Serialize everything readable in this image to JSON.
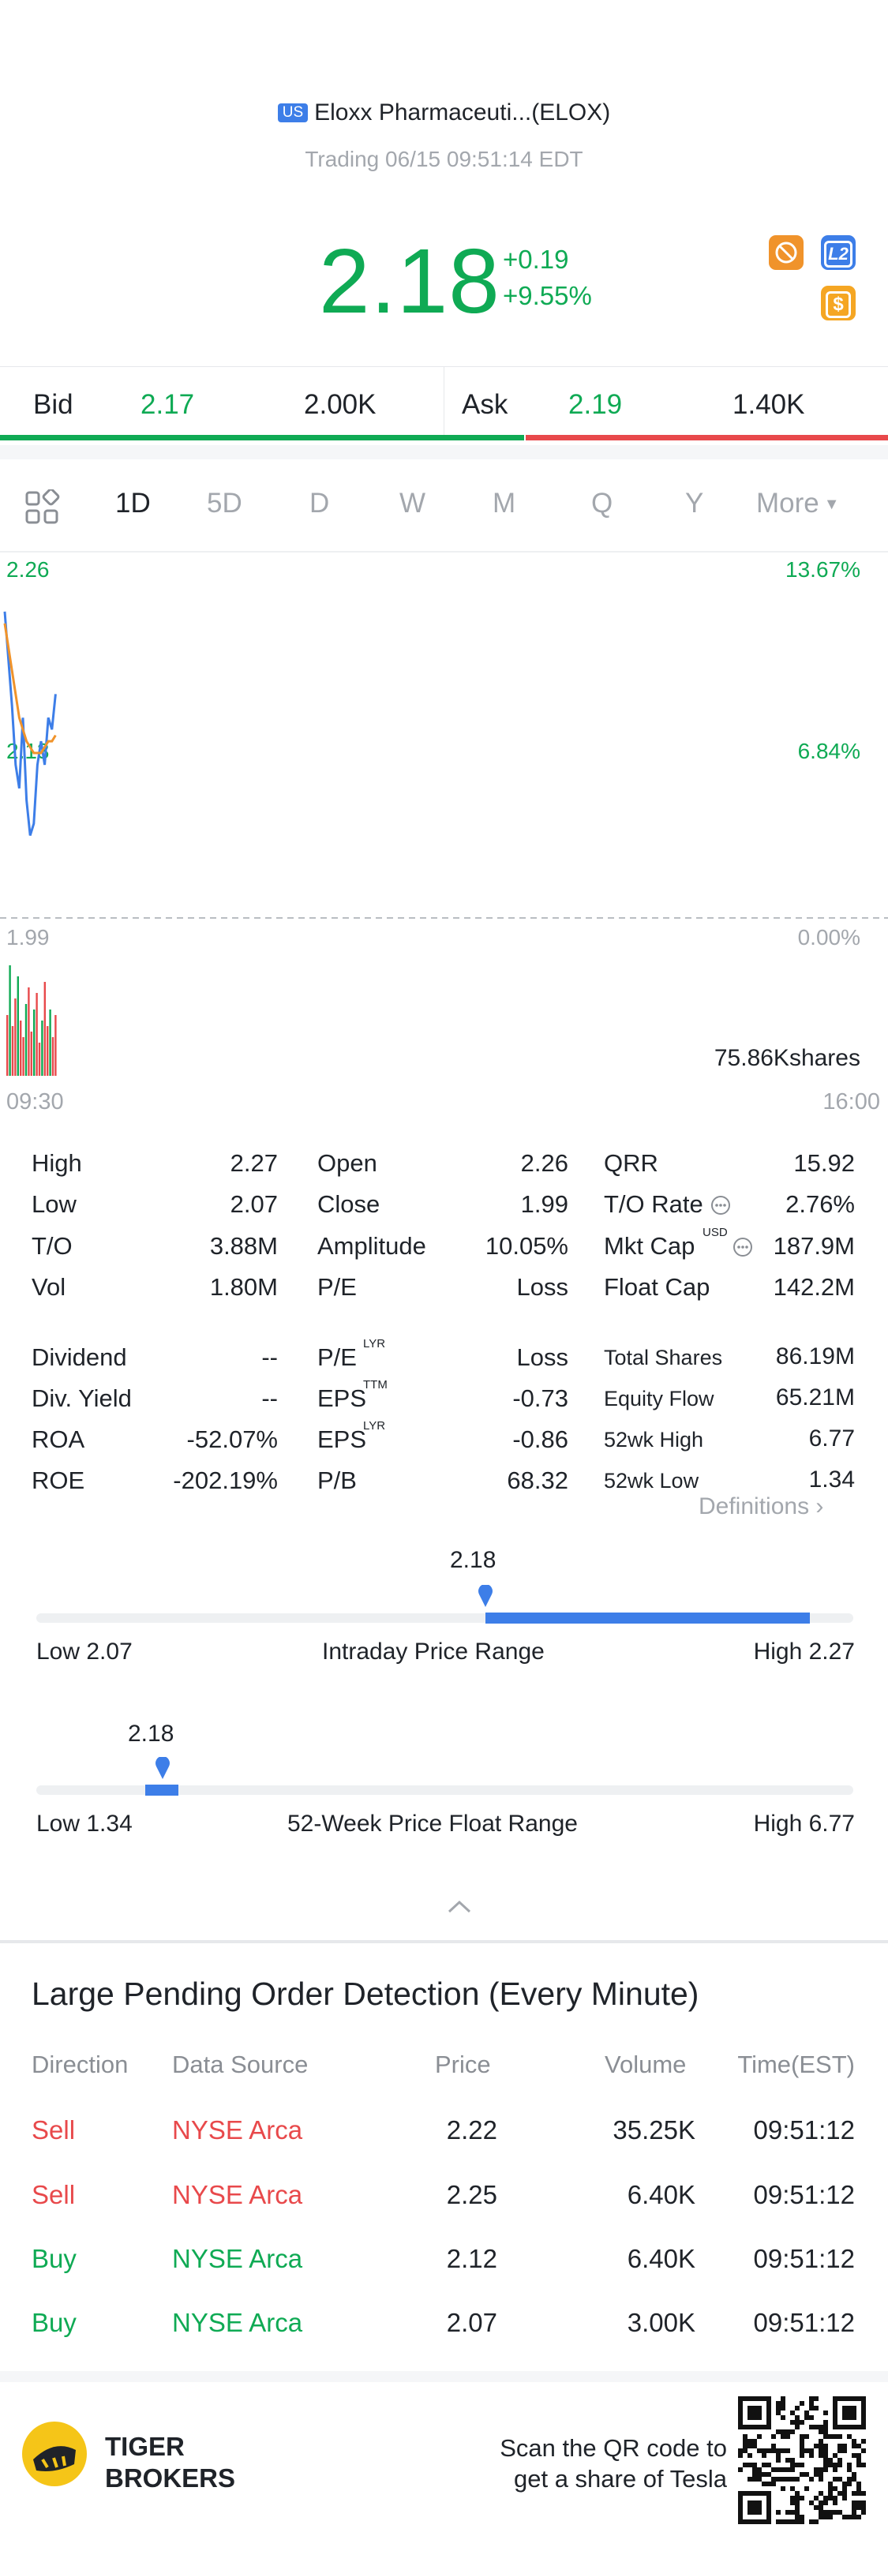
{
  "header": {
    "market_badge": "US",
    "stock_name": "Eloxx Pharmaceuti...(ELOX)",
    "trading_status": "Trading 06/15 09:51:14 EDT",
    "price": "2.18",
    "change": "+0.19",
    "change_pct": "+9.55%",
    "badges": [
      "lock-badge",
      "L2",
      "$"
    ]
  },
  "quote": {
    "bid_label": "Bid",
    "bid_price": "2.17",
    "bid_size": "2.00K",
    "ask_label": "Ask",
    "ask_price": "2.19",
    "ask_size": "1.40K",
    "bid_share": 0.59
  },
  "tabs": [
    "1D",
    "5D",
    "D",
    "W",
    "M",
    "Q",
    "Y",
    "More"
  ],
  "active_tab": "1D",
  "chart": {
    "y_high": "2.26",
    "y_mid": "2.13",
    "y_low": "1.99",
    "pct_high": "13.67%",
    "pct_mid": "6.84%",
    "pct_low": "0.00%",
    "volume_label": "75.86Kshares",
    "time_start": "09:30",
    "time_end": "16:00"
  },
  "chart_data": {
    "type": "line",
    "series": [
      {
        "values": [
          2.25,
          2.21,
          2.17,
          2.12,
          2.1,
          2.16,
          2.09,
          2.06,
          2.07,
          2.12,
          2.14,
          2.12,
          2.16,
          2.15,
          2.18
        ]
      },
      {
        "values": [
          2.24,
          2.22,
          2.2,
          2.18,
          2.16,
          2.15,
          2.14,
          2.135,
          2.13,
          2.13,
          2.13,
          2.135,
          2.14,
          2.14,
          2.145
        ]
      }
    ],
    "volume": [
      0.55,
      1.0,
      0.45,
      0.7,
      0.9,
      0.5,
      0.35,
      0.65,
      0.8,
      0.4,
      0.6,
      0.75,
      0.3,
      0.5,
      0.85,
      0.45,
      0.6,
      0.35,
      0.55
    ],
    "ylim": [
      1.99,
      2.26
    ],
    "colors": {
      "price": "#3d7ee8",
      "avg": "#f0932b",
      "vol_up": "#e8494b",
      "vol_down": "#0faa54"
    }
  },
  "stats": {
    "col1": [
      {
        "label": "High",
        "value": "2.27"
      },
      {
        "label": "Low",
        "value": "2.07"
      },
      {
        "label": "T/O",
        "value": "3.88M"
      },
      {
        "label": "Vol",
        "value": "1.80M"
      },
      {
        "label": "Dividend",
        "value": "--"
      },
      {
        "label": "Div. Yield",
        "value": "--"
      },
      {
        "label": "ROA",
        "value": "-52.07%"
      },
      {
        "label": "ROE",
        "value": "-202.19%"
      }
    ],
    "col2": [
      {
        "label": "Open",
        "value": "2.26"
      },
      {
        "label": "Close",
        "value": "1.99"
      },
      {
        "label": "Amplitude",
        "value": "10.05%"
      },
      {
        "label": "P/E",
        "value": "Loss"
      },
      {
        "label": "P/E",
        "sup": "LYR",
        "value": "Loss"
      },
      {
        "label": "EPS",
        "sup": "TTM",
        "value": "-0.73"
      },
      {
        "label": "EPS",
        "sup": "LYR",
        "value": "-0.86"
      },
      {
        "label": "P/B",
        "value": "68.32"
      }
    ],
    "col3": [
      {
        "label": "QRR",
        "value": "15.92"
      },
      {
        "label": "T/O Rate",
        "value": "2.76%"
      },
      {
        "label": "Mkt Cap",
        "sup": "USD",
        "value": "187.9M"
      },
      {
        "label": "Float Cap",
        "value": "142.2M"
      },
      {
        "label": "Total Shares",
        "value": "86.19M"
      },
      {
        "label": "Equity Flow",
        "value": "65.21M"
      },
      {
        "label": "52wk High",
        "value": "6.77"
      },
      {
        "label": "52wk Low",
        "value": "1.34"
      }
    ],
    "definitions_link": "Definitions"
  },
  "ranges": {
    "intraday": {
      "current": "2.18",
      "low_label": "Low 2.07",
      "title": "Intraday Price Range",
      "high_label": "High 2.27",
      "position": 0.55
    },
    "week52": {
      "current": "2.18",
      "low_label": "Low 1.34",
      "title": "52-Week Price Float Range",
      "high_label": "High 6.77",
      "position": 0.155
    }
  },
  "large_orders": {
    "title": "Large Pending Order Detection (Every Minute)",
    "headers": [
      "Direction",
      "Data Source",
      "Price",
      "Volume",
      "Time(EST)"
    ],
    "rows": [
      {
        "direction": "Sell",
        "source": "NYSE Arca",
        "price": "2.22",
        "volume": "35.25K",
        "time": "09:51:12"
      },
      {
        "direction": "Sell",
        "source": "NYSE Arca",
        "price": "2.25",
        "volume": "6.40K",
        "time": "09:51:12"
      },
      {
        "direction": "Buy",
        "source": "NYSE Arca",
        "price": "2.12",
        "volume": "6.40K",
        "time": "09:51:12"
      },
      {
        "direction": "Buy",
        "source": "NYSE Arca",
        "price": "2.07",
        "volume": "3.00K",
        "time": "09:51:12"
      }
    ]
  },
  "footer": {
    "brand_line1": "TIGER",
    "brand_line2": "BROKERS",
    "cta_line1": "Scan the QR code to",
    "cta_line2": "get a share of Tesla"
  }
}
